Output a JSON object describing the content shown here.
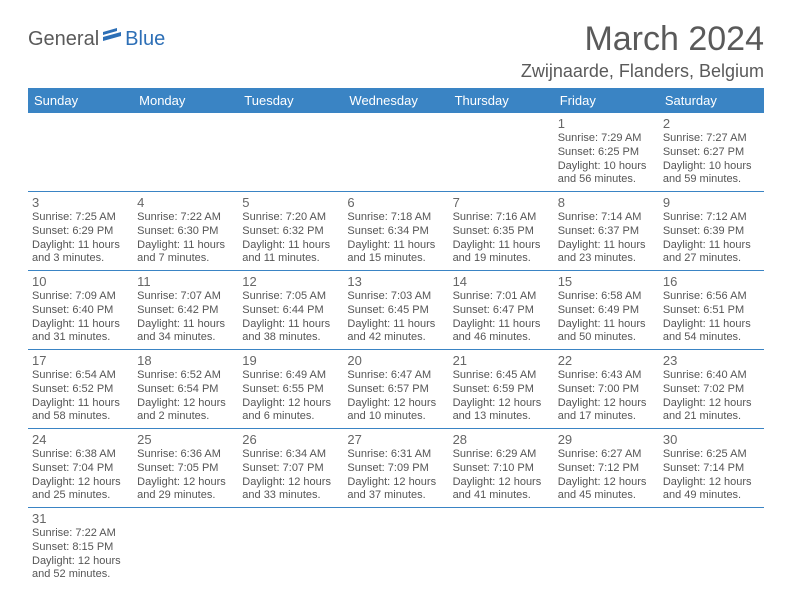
{
  "logo": {
    "text1": "General",
    "text2": "Blue"
  },
  "title": "March 2024",
  "location": "Zwijnaarde, Flanders, Belgium",
  "colors": {
    "header_bg": "#3a84c4",
    "header_text": "#ffffff",
    "border": "#3a84c4",
    "body_text": "#555555",
    "daynum": "#666666",
    "title_text": "#5a5a5a",
    "logo_blue": "#2d6fb6"
  },
  "typography": {
    "title_fontsize": 34,
    "location_fontsize": 18,
    "header_fontsize": 13,
    "daynum_fontsize": 13,
    "body_fontsize": 11
  },
  "weekdays": [
    "Sunday",
    "Monday",
    "Tuesday",
    "Wednesday",
    "Thursday",
    "Friday",
    "Saturday"
  ],
  "weeks": [
    [
      null,
      null,
      null,
      null,
      null,
      {
        "n": "1",
        "sunrise": "7:29 AM",
        "sunset": "6:25 PM",
        "dl": "10 hours and 56 minutes."
      },
      {
        "n": "2",
        "sunrise": "7:27 AM",
        "sunset": "6:27 PM",
        "dl": "10 hours and 59 minutes."
      }
    ],
    [
      {
        "n": "3",
        "sunrise": "7:25 AM",
        "sunset": "6:29 PM",
        "dl": "11 hours and 3 minutes."
      },
      {
        "n": "4",
        "sunrise": "7:22 AM",
        "sunset": "6:30 PM",
        "dl": "11 hours and 7 minutes."
      },
      {
        "n": "5",
        "sunrise": "7:20 AM",
        "sunset": "6:32 PM",
        "dl": "11 hours and 11 minutes."
      },
      {
        "n": "6",
        "sunrise": "7:18 AM",
        "sunset": "6:34 PM",
        "dl": "11 hours and 15 minutes."
      },
      {
        "n": "7",
        "sunrise": "7:16 AM",
        "sunset": "6:35 PM",
        "dl": "11 hours and 19 minutes."
      },
      {
        "n": "8",
        "sunrise": "7:14 AM",
        "sunset": "6:37 PM",
        "dl": "11 hours and 23 minutes."
      },
      {
        "n": "9",
        "sunrise": "7:12 AM",
        "sunset": "6:39 PM",
        "dl": "11 hours and 27 minutes."
      }
    ],
    [
      {
        "n": "10",
        "sunrise": "7:09 AM",
        "sunset": "6:40 PM",
        "dl": "11 hours and 31 minutes."
      },
      {
        "n": "11",
        "sunrise": "7:07 AM",
        "sunset": "6:42 PM",
        "dl": "11 hours and 34 minutes."
      },
      {
        "n": "12",
        "sunrise": "7:05 AM",
        "sunset": "6:44 PM",
        "dl": "11 hours and 38 minutes."
      },
      {
        "n": "13",
        "sunrise": "7:03 AM",
        "sunset": "6:45 PM",
        "dl": "11 hours and 42 minutes."
      },
      {
        "n": "14",
        "sunrise": "7:01 AM",
        "sunset": "6:47 PM",
        "dl": "11 hours and 46 minutes."
      },
      {
        "n": "15",
        "sunrise": "6:58 AM",
        "sunset": "6:49 PM",
        "dl": "11 hours and 50 minutes."
      },
      {
        "n": "16",
        "sunrise": "6:56 AM",
        "sunset": "6:51 PM",
        "dl": "11 hours and 54 minutes."
      }
    ],
    [
      {
        "n": "17",
        "sunrise": "6:54 AM",
        "sunset": "6:52 PM",
        "dl": "11 hours and 58 minutes."
      },
      {
        "n": "18",
        "sunrise": "6:52 AM",
        "sunset": "6:54 PM",
        "dl": "12 hours and 2 minutes."
      },
      {
        "n": "19",
        "sunrise": "6:49 AM",
        "sunset": "6:55 PM",
        "dl": "12 hours and 6 minutes."
      },
      {
        "n": "20",
        "sunrise": "6:47 AM",
        "sunset": "6:57 PM",
        "dl": "12 hours and 10 minutes."
      },
      {
        "n": "21",
        "sunrise": "6:45 AM",
        "sunset": "6:59 PM",
        "dl": "12 hours and 13 minutes."
      },
      {
        "n": "22",
        "sunrise": "6:43 AM",
        "sunset": "7:00 PM",
        "dl": "12 hours and 17 minutes."
      },
      {
        "n": "23",
        "sunrise": "6:40 AM",
        "sunset": "7:02 PM",
        "dl": "12 hours and 21 minutes."
      }
    ],
    [
      {
        "n": "24",
        "sunrise": "6:38 AM",
        "sunset": "7:04 PM",
        "dl": "12 hours and 25 minutes."
      },
      {
        "n": "25",
        "sunrise": "6:36 AM",
        "sunset": "7:05 PM",
        "dl": "12 hours and 29 minutes."
      },
      {
        "n": "26",
        "sunrise": "6:34 AM",
        "sunset": "7:07 PM",
        "dl": "12 hours and 33 minutes."
      },
      {
        "n": "27",
        "sunrise": "6:31 AM",
        "sunset": "7:09 PM",
        "dl": "12 hours and 37 minutes."
      },
      {
        "n": "28",
        "sunrise": "6:29 AM",
        "sunset": "7:10 PM",
        "dl": "12 hours and 41 minutes."
      },
      {
        "n": "29",
        "sunrise": "6:27 AM",
        "sunset": "7:12 PM",
        "dl": "12 hours and 45 minutes."
      },
      {
        "n": "30",
        "sunrise": "6:25 AM",
        "sunset": "7:14 PM",
        "dl": "12 hours and 49 minutes."
      }
    ],
    [
      {
        "n": "31",
        "sunrise": "7:22 AM",
        "sunset": "8:15 PM",
        "dl": "12 hours and 52 minutes."
      },
      null,
      null,
      null,
      null,
      null,
      null
    ]
  ]
}
